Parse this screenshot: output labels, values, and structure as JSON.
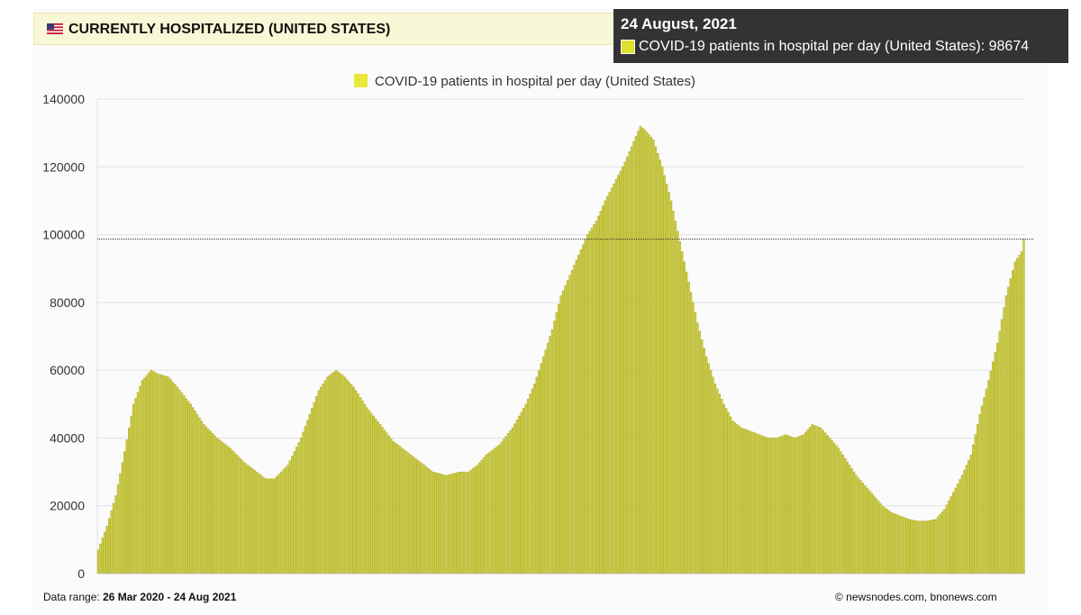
{
  "header": {
    "title": "CURRENTLY HOSPITALIZED (UNITED STATES)"
  },
  "tooltip": {
    "date": "24 August, 2021",
    "series_label": "COVID-19 patients in hospital per day (United States): 98674",
    "value": 98674
  },
  "footer": {
    "range_label": "Data range:",
    "range_start": "26 Mar 2020",
    "range_sep": "-",
    "range_end": "24 Aug 2021",
    "copyright": "©  newsnodes.com, bnonews.com"
  },
  "colors": {
    "bar_fill": "#cccc44",
    "bar_stroke": "#a8a820",
    "legend_swatch": "#e8e83a",
    "grid": "#e2e2e2"
  },
  "chart_data": {
    "type": "bar",
    "title": "",
    "xlabel": "",
    "ylabel": "",
    "legend": "COVID-19 patients in hospital per day (United States)",
    "legend_position": "top-center",
    "grid": true,
    "ylim": [
      0,
      140000
    ],
    "yticks": [
      0,
      20000,
      40000,
      60000,
      80000,
      100000,
      120000,
      140000
    ],
    "x_start": "26 Mar 2020",
    "x_end": "24 Aug 2021",
    "hover_value": 98674,
    "anchors": [
      [
        0,
        7000
      ],
      [
        4,
        14000
      ],
      [
        8,
        23000
      ],
      [
        12,
        36000
      ],
      [
        16,
        50000
      ],
      [
        20,
        57000
      ],
      [
        24,
        60000
      ],
      [
        27,
        59000
      ],
      [
        32,
        58000
      ],
      [
        36,
        55000
      ],
      [
        42,
        50000
      ],
      [
        48,
        44000
      ],
      [
        54,
        40000
      ],
      [
        60,
        37000
      ],
      [
        66,
        33000
      ],
      [
        72,
        30000
      ],
      [
        76,
        28000
      ],
      [
        80,
        28000
      ],
      [
        86,
        32000
      ],
      [
        92,
        40000
      ],
      [
        96,
        47000
      ],
      [
        100,
        54000
      ],
      [
        104,
        58000
      ],
      [
        108,
        60000
      ],
      [
        112,
        58000
      ],
      [
        116,
        55000
      ],
      [
        122,
        49000
      ],
      [
        128,
        44000
      ],
      [
        134,
        39000
      ],
      [
        140,
        36000
      ],
      [
        146,
        33000
      ],
      [
        152,
        30000
      ],
      [
        158,
        29000
      ],
      [
        164,
        30000
      ],
      [
        168,
        30000
      ],
      [
        172,
        32000
      ],
      [
        176,
        35000
      ],
      [
        182,
        38000
      ],
      [
        188,
        43000
      ],
      [
        194,
        50000
      ],
      [
        198,
        56000
      ],
      [
        202,
        64000
      ],
      [
        206,
        72000
      ],
      [
        210,
        82000
      ],
      [
        214,
        88000
      ],
      [
        218,
        94000
      ],
      [
        222,
        100000
      ],
      [
        226,
        104000
      ],
      [
        230,
        110000
      ],
      [
        234,
        115000
      ],
      [
        238,
        120000
      ],
      [
        242,
        126000
      ],
      [
        246,
        132000
      ],
      [
        248,
        131000
      ],
      [
        252,
        128000
      ],
      [
        256,
        120000
      ],
      [
        260,
        110000
      ],
      [
        264,
        98000
      ],
      [
        268,
        86000
      ],
      [
        272,
        74000
      ],
      [
        276,
        64000
      ],
      [
        280,
        56000
      ],
      [
        284,
        50000
      ],
      [
        288,
        45000
      ],
      [
        292,
        43000
      ],
      [
        296,
        42000
      ],
      [
        300,
        41000
      ],
      [
        304,
        40000
      ],
      [
        308,
        40000
      ],
      [
        312,
        41000
      ],
      [
        316,
        40000
      ],
      [
        320,
        41000
      ],
      [
        324,
        44000
      ],
      [
        328,
        43000
      ],
      [
        332,
        40000
      ],
      [
        336,
        37000
      ],
      [
        340,
        33000
      ],
      [
        344,
        29000
      ],
      [
        348,
        26000
      ],
      [
        352,
        23000
      ],
      [
        356,
        20000
      ],
      [
        360,
        18000
      ],
      [
        364,
        17000
      ],
      [
        368,
        16000
      ],
      [
        372,
        15500
      ],
      [
        376,
        15500
      ],
      [
        380,
        16000
      ],
      [
        384,
        19000
      ],
      [
        388,
        24000
      ],
      [
        392,
        29000
      ],
      [
        396,
        35000
      ],
      [
        400,
        47000
      ],
      [
        404,
        57000
      ],
      [
        408,
        68000
      ],
      [
        412,
        82000
      ],
      [
        416,
        92000
      ],
      [
        419,
        95000
      ],
      [
        420,
        98674
      ]
    ]
  }
}
